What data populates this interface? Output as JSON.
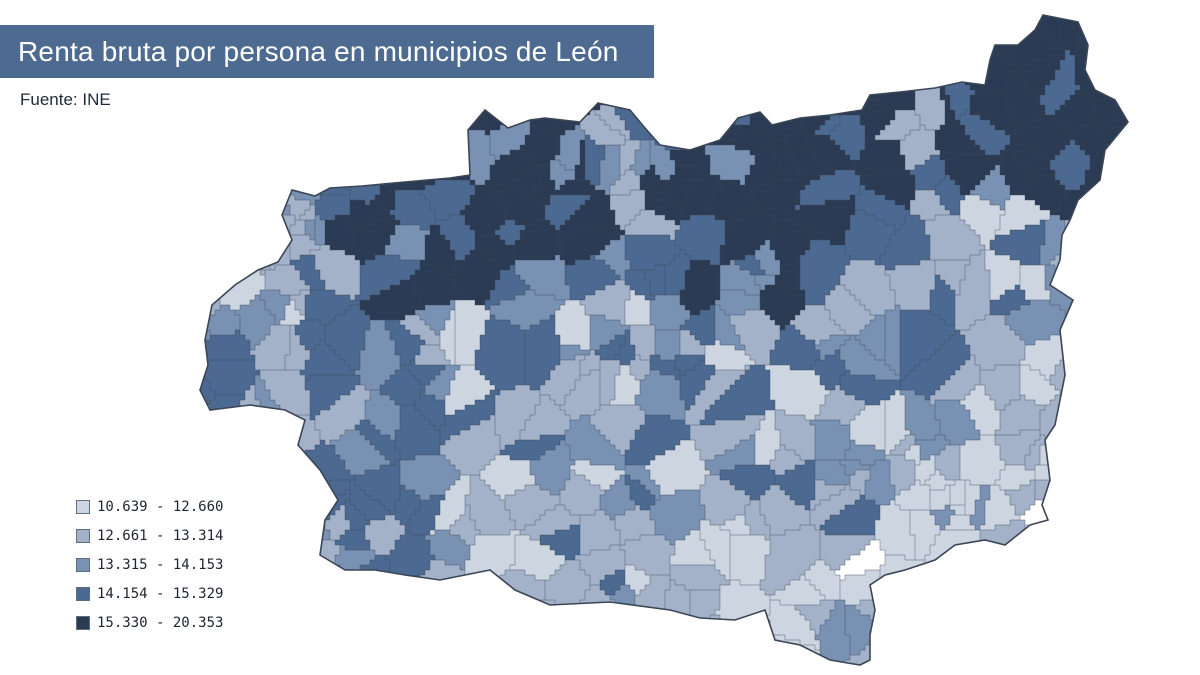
{
  "title": "Renta bruta por persona en municipios de León",
  "source": "Fuente: INE",
  "legend": [
    {
      "label": "10.639 - 12.660",
      "color": "#cdd5e1"
    },
    {
      "label": "12.661 - 13.314",
      "color": "#a3b2c9"
    },
    {
      "label": "13.315 - 14.153",
      "color": "#7991b3"
    },
    {
      "label": "14.154 - 15.329",
      "color": "#4c6a91"
    },
    {
      "label": "15.330 - 20.353",
      "color": "#2b3b54"
    }
  ],
  "colors": {
    "title_bg": "#4d6a90",
    "border": "#3b4656",
    "unshaded": "#ffffff"
  }
}
